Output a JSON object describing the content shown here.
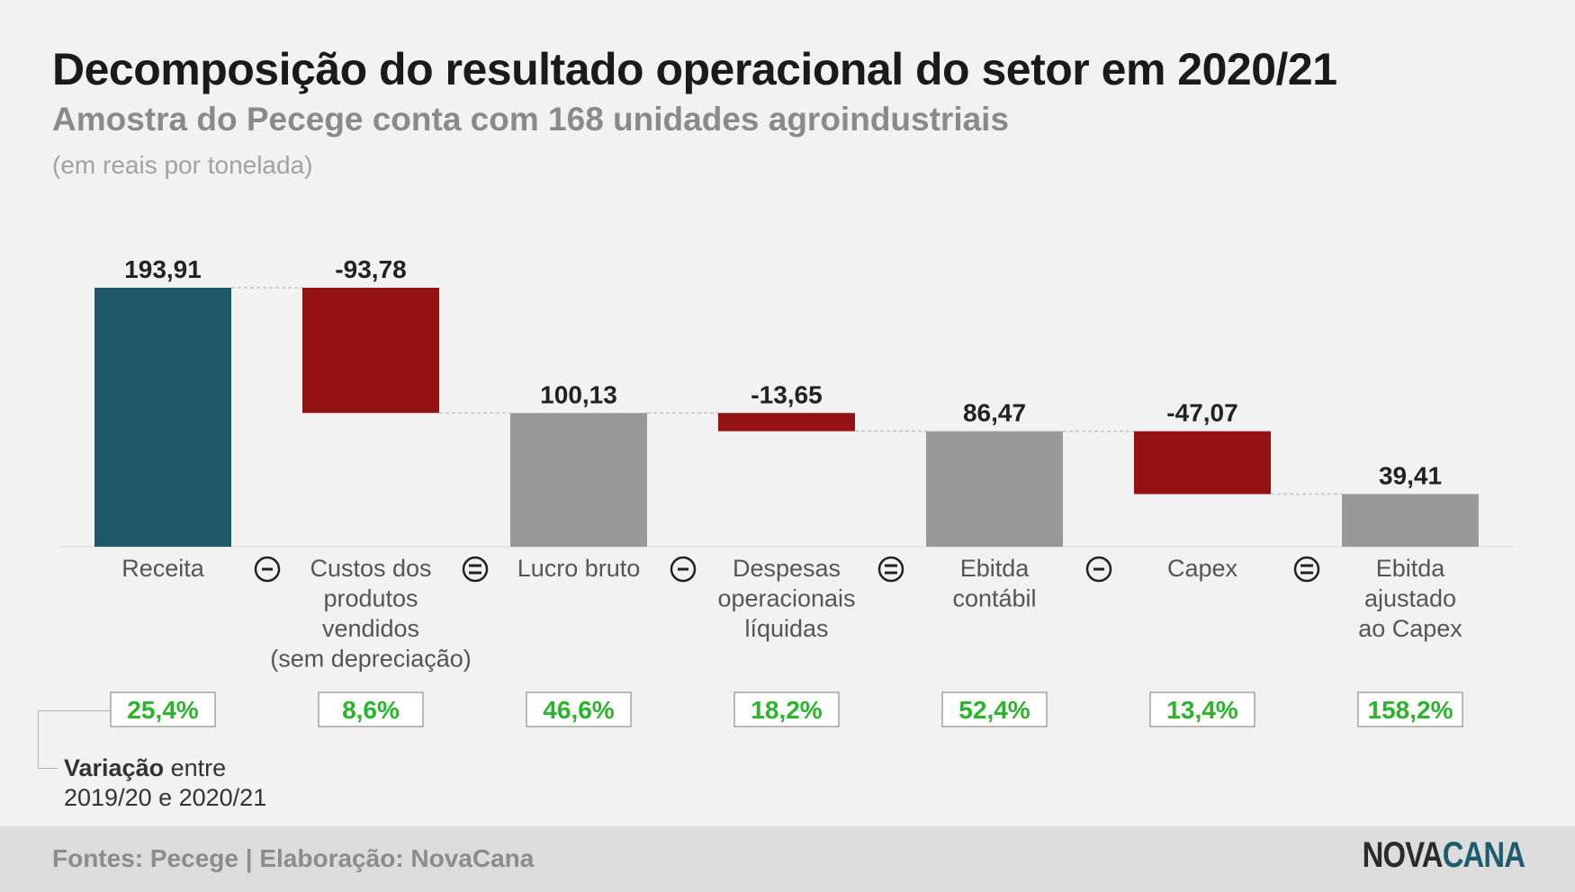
{
  "header": {
    "title": "Decomposição do resultado operacional do setor em 2020/21",
    "subtitle": "Amostra do Pecege conta com 168 unidades agroindustriais",
    "unit": "(em reais por tonelada)"
  },
  "colors": {
    "receita": "#1f5769",
    "negative": "#951214",
    "result": "#999999",
    "variation_text": "#2ab52a",
    "variation_border": "#7a7a7a"
  },
  "chart_data": {
    "type": "waterfall",
    "unit": "R$/t",
    "steps": [
      {
        "label": [
          "Receita"
        ],
        "value": 193.91,
        "display": "193,91",
        "kind": "total",
        "variation": "25,4%"
      },
      {
        "label": [
          "Custos dos",
          "produtos",
          "vendidos",
          "(sem depreciação)"
        ],
        "value": -93.78,
        "display": "-93,78",
        "kind": "negative",
        "variation": "8,6%"
      },
      {
        "label": [
          "Lucro bruto"
        ],
        "value": 100.13,
        "display": "100,13",
        "kind": "result",
        "variation": "46,6%"
      },
      {
        "label": [
          "Despesas",
          "operacionais",
          "líquidas"
        ],
        "value": -13.65,
        "display": "-13,65",
        "kind": "negative",
        "variation": "18,2%"
      },
      {
        "label": [
          "Ebitda",
          "contábil"
        ],
        "value": 86.47,
        "display": "86,47",
        "kind": "result",
        "variation": "52,4%"
      },
      {
        "label": [
          "Capex"
        ],
        "value": -47.07,
        "display": "-47,07",
        "kind": "negative",
        "variation": "13,4%"
      },
      {
        "label": [
          "Ebitda",
          "ajustado",
          "ao Capex"
        ],
        "value": 39.41,
        "display": "39,41",
        "kind": "result",
        "variation": "158,2%"
      }
    ],
    "operators": [
      "-",
      "=",
      "-",
      "=",
      "-",
      "="
    ],
    "ylim": [
      0,
      193.91
    ]
  },
  "legend": {
    "variation_bold": "Variação",
    "variation_rest_1": " entre",
    "variation_line2": "2019/20 e 2020/21"
  },
  "footer": {
    "sources": "Fontes: Pecege | Elaboração: NovaCana",
    "logo_part1": "NOVA",
    "logo_part2": "CANA"
  }
}
